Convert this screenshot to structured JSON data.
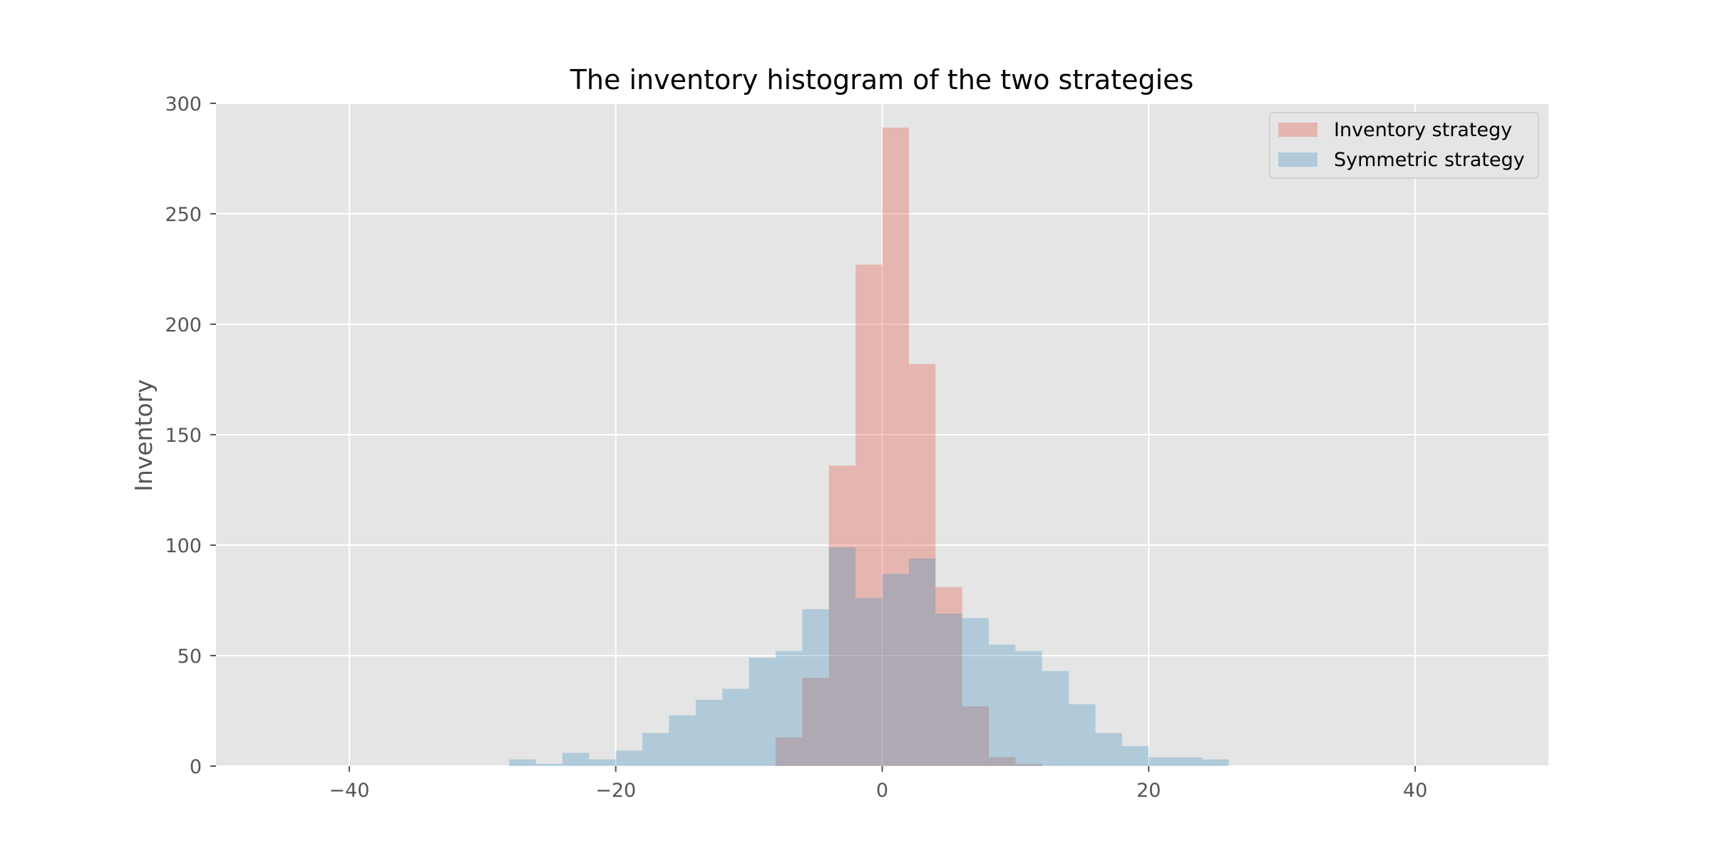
{
  "chart_data": {
    "type": "bar",
    "title": "The inventory histogram of the two strategies",
    "xlabel": "",
    "ylabel": "Inventory",
    "xlim": [
      -50,
      50
    ],
    "ylim": [
      0,
      300
    ],
    "xticks": [
      -40,
      -20,
      0,
      20,
      40
    ],
    "xtick_labels": [
      "−40",
      "−20",
      "0",
      "20",
      "40"
    ],
    "yticks": [
      0,
      50,
      100,
      150,
      200,
      250,
      300
    ],
    "ytick_labels": [
      "0",
      "50",
      "100",
      "150",
      "200",
      "250",
      "300"
    ],
    "grid": true,
    "legend_position": "top-right",
    "bin_width": 2,
    "series": [
      {
        "name": "Inventory strategy",
        "color": "#E24A33",
        "opacity": 0.3,
        "bin_starts": [
          -8,
          -6,
          -4,
          -2,
          0,
          2,
          4,
          6,
          8,
          10
        ],
        "values": [
          13,
          40,
          136,
          227,
          289,
          182,
          81,
          27,
          4,
          1
        ]
      },
      {
        "name": "Symmetric strategy",
        "color": "#348ABD",
        "opacity": 0.3,
        "bin_starts": [
          -28,
          -26,
          -24,
          -22,
          -20,
          -18,
          -16,
          -14,
          -12,
          -10,
          -8,
          -6,
          -4,
          -2,
          0,
          2,
          4,
          6,
          8,
          10,
          12,
          14,
          16,
          18,
          20,
          22,
          24
        ],
        "values": [
          3,
          1,
          6,
          3,
          7,
          15,
          23,
          30,
          35,
          49,
          52,
          71,
          99,
          76,
          87,
          94,
          69,
          67,
          55,
          52,
          43,
          28,
          15,
          9,
          4,
          4,
          3
        ]
      }
    ]
  }
}
